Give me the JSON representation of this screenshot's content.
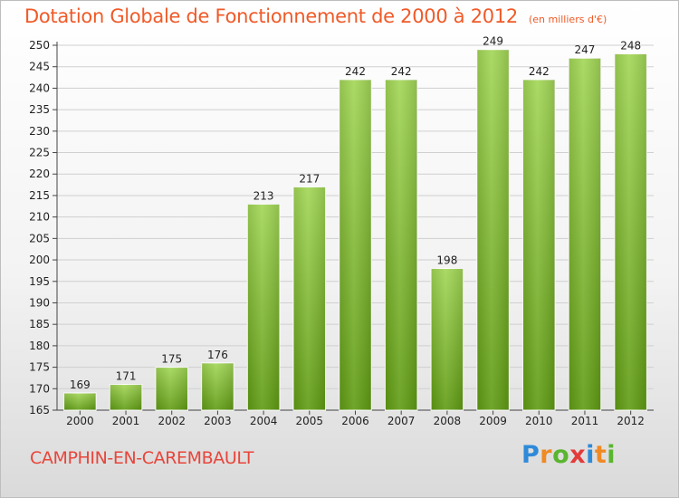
{
  "title": "Dotation Globale de Fonctionnement de 2000 à 2012",
  "subtitle": "(en milliers d'€)",
  "commune": "CAMPHIN-EN-CAREMBAULT",
  "logo": {
    "text": "Proxiti",
    "letters": [
      "P",
      "r",
      "o",
      "x",
      "i",
      "t",
      "i"
    ],
    "colors": [
      "#2f8ad8",
      "#f08a24",
      "#5ab52f",
      "#e43a3a",
      "#2f8ad8",
      "#f08a24",
      "#5ab52f"
    ]
  },
  "colors": {
    "title": "#f05a28",
    "bar_top": "#a2d656",
    "bar_bottom": "#5f9b12",
    "grid": "#cfcfcf"
  },
  "chart_data": {
    "type": "bar",
    "categories": [
      "2000",
      "2001",
      "2002",
      "2003",
      "2004",
      "2005",
      "2006",
      "2007",
      "2008",
      "2009",
      "2010",
      "2011",
      "2012"
    ],
    "values": [
      169,
      171,
      175,
      176,
      213,
      217,
      242,
      242,
      198,
      249,
      242,
      247,
      248
    ],
    "ylim": [
      165,
      250
    ],
    "yticks": [
      165,
      170,
      175,
      180,
      185,
      190,
      195,
      200,
      205,
      210,
      215,
      220,
      225,
      230,
      235,
      240,
      245,
      250
    ],
    "grid": true,
    "data_labels": true
  }
}
